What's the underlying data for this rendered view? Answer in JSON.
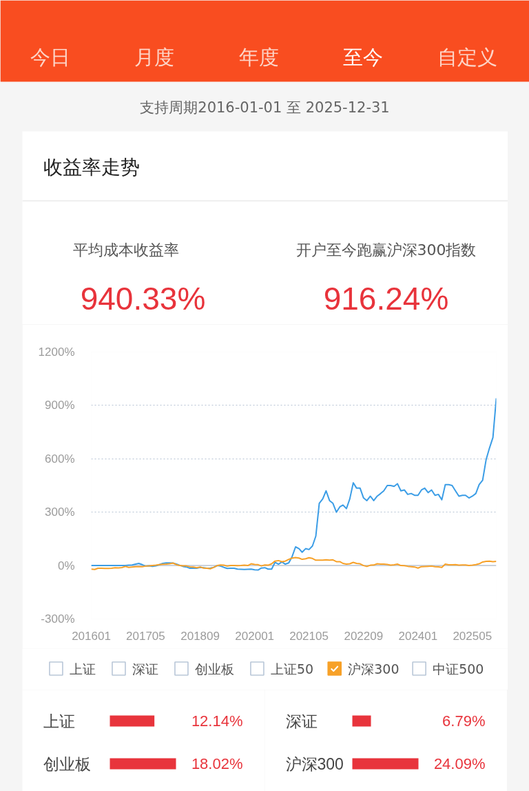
{
  "chart_data": [
    {
      "type": "line",
      "title": "收益率走势",
      "subtitle": "支持周期2016-01-01 至 2025-12-31",
      "annotations": [
        "今日",
        "月度",
        "年度",
        "至今",
        "自定义",
        "平均成本收益率",
        "940.33%",
        "开户至今跑赢沪深300指数",
        "916.24%"
      ],
      "x": [
        "2016-01",
        "2016-02",
        "2016-03",
        "2016-04",
        "2016-05",
        "2016-06",
        "2016-07",
        "2016-08",
        "2016-09",
        "2016-10",
        "2016-11",
        "2016-12",
        "2017-01",
        "2017-02",
        "2017-03",
        "2017-04",
        "2017-05",
        "2017-06",
        "2017-07",
        "2017-08",
        "2017-09",
        "2017-10",
        "2017-11",
        "2017-12",
        "2018-01",
        "2018-02",
        "2018-03",
        "2018-04",
        "2018-05",
        "2018-06",
        "2018-07",
        "2018-08",
        "2018-09",
        "2018-10",
        "2018-11",
        "2018-12",
        "2019-01",
        "2019-02",
        "2019-03",
        "2019-04",
        "2019-05",
        "2019-06",
        "2019-07",
        "2019-08",
        "2019-09",
        "2019-10",
        "2019-11",
        "2019-12",
        "2020-01",
        "2020-02",
        "2020-03",
        "2020-04",
        "2020-05",
        "2020-06",
        "2020-07",
        "2020-08",
        "2020-09",
        "2020-10",
        "2020-11",
        "2020-12",
        "2021-01",
        "2021-02",
        "2021-03",
        "2021-04",
        "2021-05",
        "2021-06",
        "2021-07",
        "2021-08",
        "2021-09",
        "2021-10",
        "2021-11",
        "2021-12",
        "2022-01",
        "2022-02",
        "2022-03",
        "2022-04",
        "2022-05",
        "2022-06",
        "2022-07",
        "2022-08",
        "2022-09",
        "2022-10",
        "2022-11",
        "2022-12",
        "2023-01",
        "2023-02",
        "2023-03",
        "2023-04",
        "2023-05",
        "2023-06",
        "2023-07",
        "2023-08",
        "2023-09",
        "2023-10",
        "2023-11",
        "2023-12",
        "2024-01",
        "2024-02",
        "2024-03",
        "2024-04",
        "2024-05",
        "2024-06",
        "2024-07",
        "2024-08",
        "2024-09",
        "2024-10",
        "2024-11",
        "2024-12",
        "2025-01",
        "2025-02",
        "2025-03",
        "2025-04",
        "2025-05",
        "2025-06",
        "2025-07",
        "2025-08",
        "2025-09",
        "2025-10",
        "2025-11",
        "2025-12"
      ],
      "xlim": [
        "2016-01",
        "2025-12"
      ],
      "xticks": [
        {
          "value": "2016-01",
          "label": "201601"
        },
        {
          "value": "2017-05",
          "label": "201705"
        },
        {
          "value": "2018-09",
          "label": "201809"
        },
        {
          "value": "2020-01",
          "label": "202001"
        },
        {
          "value": "2021-05",
          "label": "202105"
        },
        {
          "value": "2022-09",
          "label": "202209"
        },
        {
          "value": "2024-01",
          "label": "202401"
        },
        {
          "value": "2025-05",
          "label": "202505"
        }
      ],
      "ylim": [
        -300,
        1200
      ],
      "yticks": [
        {
          "value": -300,
          "label": "-300%"
        },
        {
          "value": 0,
          "label": "0%"
        },
        {
          "value": 300,
          "label": "300%"
        },
        {
          "value": 600,
          "label": "600%"
        },
        {
          "value": 900,
          "label": "900%"
        },
        {
          "value": 1200,
          "label": "1200%"
        }
      ],
      "grid": "y",
      "legend": "bottom",
      "series": [
        {
          "color": "#3b9de6",
          "values": [
            0,
            0,
            0,
            0,
            0,
            0,
            0,
            0,
            0,
            0,
            0,
            2,
            3,
            8,
            12,
            5,
            -3,
            -2,
            -4,
            -2,
            5,
            12,
            15,
            15,
            14,
            8,
            2,
            -5,
            -8,
            -15,
            -14,
            -15,
            -10,
            -12,
            -15,
            -14,
            -10,
            0,
            -3,
            -10,
            -16,
            -15,
            -15,
            -20,
            -21,
            -22,
            -21,
            -20,
            -24,
            -25,
            -14,
            -12,
            -20,
            -20,
            18,
            8,
            20,
            8,
            15,
            50,
            105,
            95,
            75,
            95,
            90,
            110,
            165,
            350,
            375,
            420,
            365,
            350,
            300,
            330,
            340,
            320,
            375,
            465,
            435,
            435,
            380,
            365,
            390,
            365,
            390,
            405,
            420,
            450,
            450,
            445,
            460,
            420,
            425,
            400,
            405,
            395,
            395,
            425,
            435,
            410,
            425,
            395,
            400,
            370,
            455,
            455,
            450,
            420,
            390,
            395,
            395,
            380,
            390,
            405,
            455,
            480,
            595,
            660,
            720,
            940
          ]
        },
        {
          "name": "上证",
          "color": "#b9c7d8",
          "values": [
            null,
            null,
            null,
            null,
            null,
            null,
            null,
            null,
            null,
            null,
            null,
            null,
            null,
            null,
            null,
            null,
            null,
            null,
            null,
            null,
            null,
            null,
            null,
            null,
            null,
            null,
            null,
            null,
            null,
            null,
            null,
            null,
            null,
            null,
            null,
            null,
            null,
            null,
            null,
            null,
            null,
            null,
            null,
            null,
            null,
            null,
            null,
            null,
            null,
            null,
            null,
            null,
            null,
            null,
            null,
            null,
            null,
            null,
            null,
            null,
            null,
            null,
            null,
            null,
            null,
            null,
            null,
            null,
            null,
            null,
            null,
            null,
            null,
            null,
            null,
            null,
            null,
            null,
            null,
            null,
            null,
            null,
            null,
            null,
            null,
            null,
            null,
            null,
            null,
            null,
            null,
            null,
            null,
            null,
            null,
            null,
            null,
            null,
            null,
            null,
            null,
            null,
            null,
            null,
            null,
            null,
            null,
            null,
            null,
            null,
            null,
            null,
            null,
            null,
            null,
            null,
            null,
            null,
            null,
            null
          ]
        },
        {
          "name": "深证",
          "color": "#b9c7d8",
          "values": [
            null,
            null,
            null,
            null,
            null,
            null,
            null,
            null,
            null,
            null,
            null,
            null,
            null,
            null,
            null,
            null,
            null,
            null,
            null,
            null,
            null,
            null,
            null,
            null,
            null,
            null,
            null,
            null,
            null,
            null,
            null,
            null,
            null,
            null,
            null,
            null,
            null,
            null,
            null,
            null,
            null,
            null,
            null,
            null,
            null,
            null,
            null,
            null,
            null,
            null,
            null,
            null,
            null,
            null,
            null,
            null,
            null,
            null,
            null,
            null,
            null,
            null,
            null,
            null,
            null,
            null,
            null,
            null,
            null,
            null,
            null,
            null,
            null,
            null,
            null,
            null,
            null,
            null,
            null,
            null,
            null,
            null,
            null,
            null,
            null,
            null,
            null,
            null,
            null,
            null,
            null,
            null,
            null,
            null,
            null,
            null,
            null,
            null,
            null,
            null,
            null,
            null,
            null,
            null,
            null,
            null,
            null,
            null,
            null,
            null,
            null,
            null,
            null,
            null,
            null,
            null,
            null,
            null,
            null,
            null
          ]
        },
        {
          "name": "创业板",
          "color": "#b9c7d8",
          "values": [
            null,
            null,
            null,
            null,
            null,
            null,
            null,
            null,
            null,
            null,
            null,
            null,
            null,
            null,
            null,
            null,
            null,
            null,
            null,
            null,
            null,
            null,
            null,
            null,
            null,
            null,
            null,
            null,
            null,
            null,
            null,
            null,
            null,
            null,
            null,
            null,
            null,
            null,
            null,
            null,
            null,
            null,
            null,
            null,
            null,
            null,
            null,
            null,
            null,
            null,
            null,
            null,
            null,
            null,
            null,
            null,
            null,
            null,
            null,
            null,
            null,
            null,
            null,
            null,
            null,
            null,
            null,
            null,
            null,
            null,
            null,
            null,
            null,
            null,
            null,
            null,
            null,
            null,
            null,
            null,
            null,
            null,
            null,
            null,
            null,
            null,
            null,
            null,
            null,
            null,
            null,
            null,
            null,
            null,
            null,
            null,
            null,
            null,
            null,
            null,
            null,
            null,
            null,
            null,
            null,
            null,
            null,
            null,
            null,
            null,
            null,
            null,
            null,
            null,
            null,
            null,
            null,
            null,
            null,
            null
          ]
        },
        {
          "name": "上证50",
          "color": "#b9c7d8",
          "values": [
            null,
            null,
            null,
            null,
            null,
            null,
            null,
            null,
            null,
            null,
            null,
            null,
            null,
            null,
            null,
            null,
            null,
            null,
            null,
            null,
            null,
            null,
            null,
            null,
            null,
            null,
            null,
            null,
            null,
            null,
            null,
            null,
            null,
            null,
            null,
            null,
            null,
            null,
            null,
            null,
            null,
            null,
            null,
            null,
            null,
            null,
            null,
            null,
            null,
            null,
            null,
            null,
            null,
            null,
            null,
            null,
            null,
            null,
            null,
            null,
            null,
            null,
            null,
            null,
            null,
            null,
            null,
            null,
            null,
            null,
            null,
            null,
            null,
            null,
            null,
            null,
            null,
            null,
            null,
            null,
            null,
            null,
            null,
            null,
            null,
            null,
            null,
            null,
            null,
            null,
            null,
            null,
            null,
            null,
            null,
            null,
            null,
            null,
            null,
            null,
            null,
            null,
            null,
            null,
            null,
            null,
            null,
            null,
            null,
            null,
            null,
            null,
            null,
            null,
            null,
            null,
            null,
            null,
            null,
            null
          ]
        },
        {
          "name": "沪深300",
          "color": "#f7a128",
          "values": [
            -20,
            -22,
            -15,
            -15,
            -16,
            -16,
            -15,
            -12,
            -13,
            -11,
            -5,
            -10,
            -8,
            -6,
            -6,
            -6,
            -3,
            -2,
            0,
            2,
            5,
            7,
            8,
            10,
            14,
            5,
            0,
            -2,
            -2,
            -7,
            -8,
            -12,
            -8,
            -14,
            -15,
            -18,
            -10,
            0,
            3,
            2,
            -3,
            0,
            0,
            -1,
            0,
            2,
            0,
            10,
            6,
            5,
            -2,
            3,
            2,
            10,
            25,
            28,
            22,
            25,
            35,
            42,
            45,
            42,
            35,
            38,
            44,
            40,
            30,
            30,
            30,
            32,
            30,
            32,
            22,
            22,
            12,
            8,
            10,
            18,
            12,
            10,
            0,
            -5,
            2,
            3,
            10,
            8,
            8,
            6,
            2,
            4,
            8,
            0,
            -1,
            -4,
            -6,
            -8,
            -14,
            -6,
            -5,
            -4,
            -3,
            -6,
            -7,
            -10,
            8,
            4,
            4,
            5,
            2,
            3,
            3,
            0,
            2,
            5,
            10,
            20,
            24,
            25,
            22,
            24
          ]
        },
        {
          "name": "中证500",
          "color": "#b9c7d8",
          "values": [
            null,
            null,
            null,
            null,
            null,
            null,
            null,
            null,
            null,
            null,
            null,
            null,
            null,
            null,
            null,
            null,
            null,
            null,
            null,
            null,
            null,
            null,
            null,
            null,
            null,
            null,
            null,
            null,
            null,
            null,
            null,
            null,
            null,
            null,
            null,
            null,
            null,
            null,
            null,
            null,
            null,
            null,
            null,
            null,
            null,
            null,
            null,
            null,
            null,
            null,
            null,
            null,
            null,
            null,
            null,
            null,
            null,
            null,
            null,
            null,
            null,
            null,
            null,
            null,
            null,
            null,
            null,
            null,
            null,
            null,
            null,
            null,
            null,
            null,
            null,
            null,
            null,
            null,
            null,
            null,
            null,
            null,
            null,
            null,
            null,
            null,
            null,
            null,
            null,
            null,
            null,
            null,
            null,
            null,
            null,
            null,
            null,
            null,
            null,
            null,
            null,
            null,
            null,
            null,
            null,
            null,
            null,
            null,
            null,
            null,
            null,
            null,
            null,
            null,
            null,
            null,
            null,
            null,
            null,
            null
          ]
        }
      ]
    },
    {
      "type": "bar",
      "orientation": "horizontal",
      "categories": [
        "上证",
        "创业板"
      ],
      "values": [
        12.14,
        18.02
      ],
      "value_labels": [
        "12.14%",
        "18.02%"
      ],
      "color": "#e8343c"
    },
    {
      "type": "bar",
      "orientation": "horizontal",
      "categories": [
        "深证",
        "沪深300"
      ],
      "values": [
        6.79,
        24.09
      ],
      "value_labels": [
        "6.79%",
        "24.09%"
      ],
      "color": "#e8343c"
    }
  ]
}
